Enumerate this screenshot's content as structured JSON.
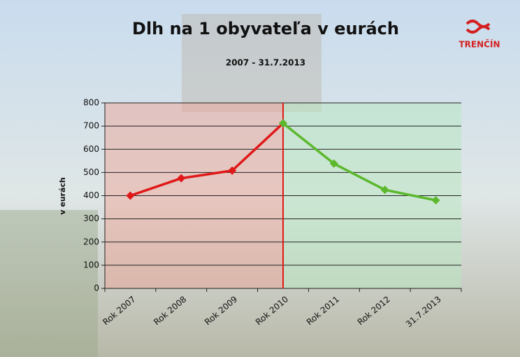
{
  "chart_data": {
    "type": "line",
    "title": "Dlh na 1 obyvateľa v eurách",
    "subtitle": "2007 - 31.7.2013",
    "logo_text": "TRENČÍN",
    "y_label": "v eurách",
    "categories": [
      "Rok 2007",
      "Rok 2008",
      "Rok 2009",
      "Rok 2010",
      "Rok 2011",
      "Rok 2012",
      "31.7.2013"
    ],
    "series": [
      {
        "color": "#e01818",
        "values": [
          400,
          475,
          508,
          712,
          null,
          null,
          null
        ]
      },
      {
        "color": "#5cb82e",
        "values": [
          null,
          null,
          null,
          712,
          538,
          425,
          380
        ]
      }
    ],
    "ylim": [
      0,
      800
    ],
    "yticks": [
      0,
      100,
      200,
      300,
      400,
      500,
      600,
      700,
      800
    ],
    "grid": true
  }
}
